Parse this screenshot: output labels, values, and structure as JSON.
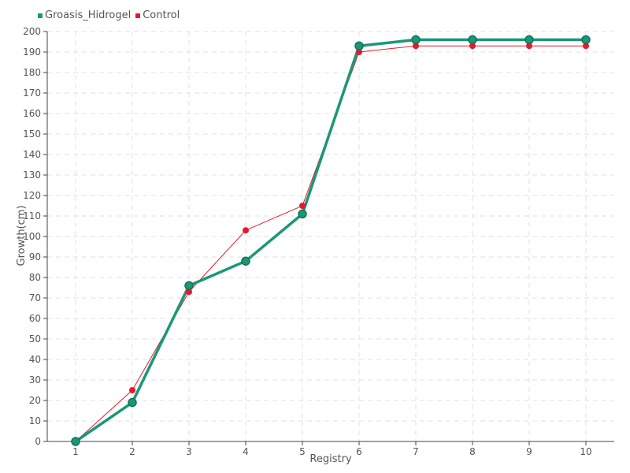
{
  "chart_data": {
    "type": "line",
    "xlabel": "Registry",
    "ylabel": "Growth(cm)",
    "categories": [
      "1",
      "2",
      "3",
      "4",
      "5",
      "6",
      "7",
      "8",
      "9",
      "10"
    ],
    "ylim": [
      0,
      200
    ],
    "ytick_step": 10,
    "grid": true,
    "legend_position": "top-left",
    "series": [
      {
        "name": "Groasis_Hidrogel",
        "color": "#1a9876",
        "values": [
          0,
          19,
          76,
          88,
          111,
          193,
          196,
          196,
          196,
          196
        ]
      },
      {
        "name": "Control",
        "color": "#e41a2c",
        "values": [
          0,
          25,
          73,
          103,
          115,
          190,
          193,
          193,
          193,
          193
        ]
      }
    ]
  }
}
